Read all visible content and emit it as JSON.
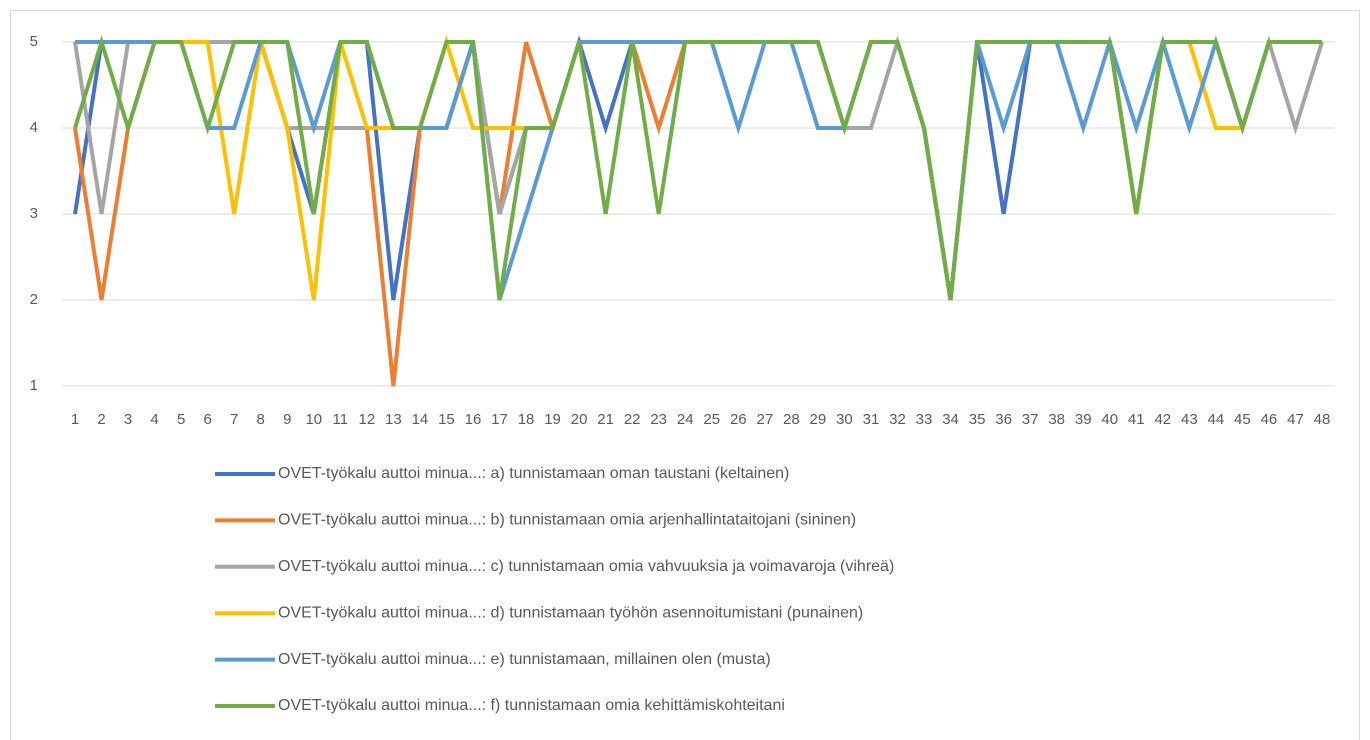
{
  "chart_data": {
    "type": "line",
    "categories": [
      1,
      2,
      3,
      4,
      5,
      6,
      7,
      8,
      9,
      10,
      11,
      12,
      13,
      14,
      15,
      16,
      17,
      18,
      19,
      20,
      21,
      22,
      23,
      24,
      25,
      26,
      27,
      28,
      29,
      30,
      31,
      32,
      33,
      34,
      35,
      36,
      37,
      38,
      39,
      40,
      41,
      42,
      43,
      44,
      45,
      46,
      47,
      48
    ],
    "ylim": [
      1,
      5
    ],
    "yticks": [
      1,
      2,
      3,
      4,
      5
    ],
    "grid": true,
    "legend": "bottom",
    "series": [
      {
        "name": "OVET-työkalu auttoi minua...: a) tunnistamaan oman taustani (keltainen)",
        "color": "#4472c4",
        "values": [
          3,
          5,
          5,
          5,
          5,
          5,
          5,
          5,
          4,
          3,
          5,
          5,
          2,
          4,
          4,
          5,
          3,
          4,
          4,
          5,
          4,
          5,
          5,
          5,
          5,
          5,
          5,
          5,
          5,
          4,
          5,
          5,
          4,
          2,
          5,
          3,
          5,
          5,
          5,
          5,
          3,
          5,
          5,
          5,
          4,
          5,
          5,
          5
        ]
      },
      {
        "name": "OVET-työkalu auttoi minua...: b) tunnistamaan omia arjenhallintataitojani (sininen)",
        "color": "#ed7d31",
        "values": [
          4,
          2,
          4,
          5,
          5,
          5,
          5,
          5,
          4,
          4,
          4,
          4,
          1,
          4,
          4,
          5,
          3,
          5,
          4,
          5,
          5,
          5,
          4,
          5,
          5,
          5,
          5,
          5,
          5,
          4,
          5,
          5,
          4,
          2,
          5,
          5,
          5,
          5,
          5,
          5,
          3,
          5,
          5,
          5,
          4,
          5,
          5,
          5
        ]
      },
      {
        "name": "OVET-työkalu auttoi minua...: c) tunnistamaan omia vahvuuksia ja voimavaroja (vihreä)",
        "color": "#a5a5a5",
        "values": [
          5,
          3,
          5,
          5,
          5,
          5,
          5,
          5,
          4,
          4,
          4,
          4,
          4,
          4,
          5,
          5,
          3,
          4,
          4,
          5,
          5,
          5,
          5,
          5,
          5,
          5,
          5,
          5,
          5,
          4,
          4,
          5,
          4,
          2,
          5,
          5,
          5,
          5,
          5,
          5,
          3,
          5,
          5,
          5,
          4,
          5,
          4,
          5
        ]
      },
      {
        "name": "OVET-työkalu auttoi minua...: d) tunnistamaan työhön asennoitumistani (punainen)",
        "color": "#ffc000",
        "values": [
          5,
          5,
          5,
          5,
          5,
          5,
          3,
          5,
          4,
          2,
          5,
          4,
          4,
          4,
          5,
          4,
          4,
          4,
          4,
          5,
          5,
          5,
          5,
          5,
          5,
          5,
          5,
          5,
          5,
          4,
          5,
          5,
          4,
          2,
          5,
          5,
          5,
          5,
          5,
          5,
          3,
          5,
          5,
          4,
          4,
          5,
          5,
          5
        ]
      },
      {
        "name": "OVET-työkalu auttoi minua...: e) tunnistamaan, millainen olen (musta)",
        "color": "#5b9bd5",
        "values": [
          5,
          5,
          5,
          5,
          5,
          4,
          4,
          5,
          5,
          4,
          5,
          5,
          4,
          4,
          4,
          5,
          2,
          3,
          4,
          5,
          5,
          5,
          5,
          5,
          5,
          4,
          5,
          5,
          4,
          4,
          5,
          5,
          4,
          2,
          5,
          4,
          5,
          5,
          4,
          5,
          4,
          5,
          4,
          5,
          4,
          5,
          5,
          5
        ]
      },
      {
        "name": "OVET-työkalu auttoi minua...: f) tunnistamaan omia kehittämiskohteitani",
        "color": "#70ad47",
        "values": [
          4,
          5,
          4,
          5,
          5,
          4,
          5,
          5,
          5,
          3,
          5,
          5,
          4,
          4,
          5,
          5,
          2,
          4,
          4,
          5,
          3,
          5,
          3,
          5,
          5,
          5,
          5,
          5,
          5,
          4,
          5,
          5,
          4,
          2,
          5,
          5,
          5,
          5,
          5,
          5,
          3,
          5,
          5,
          5,
          4,
          5,
          5,
          5
        ]
      }
    ]
  }
}
